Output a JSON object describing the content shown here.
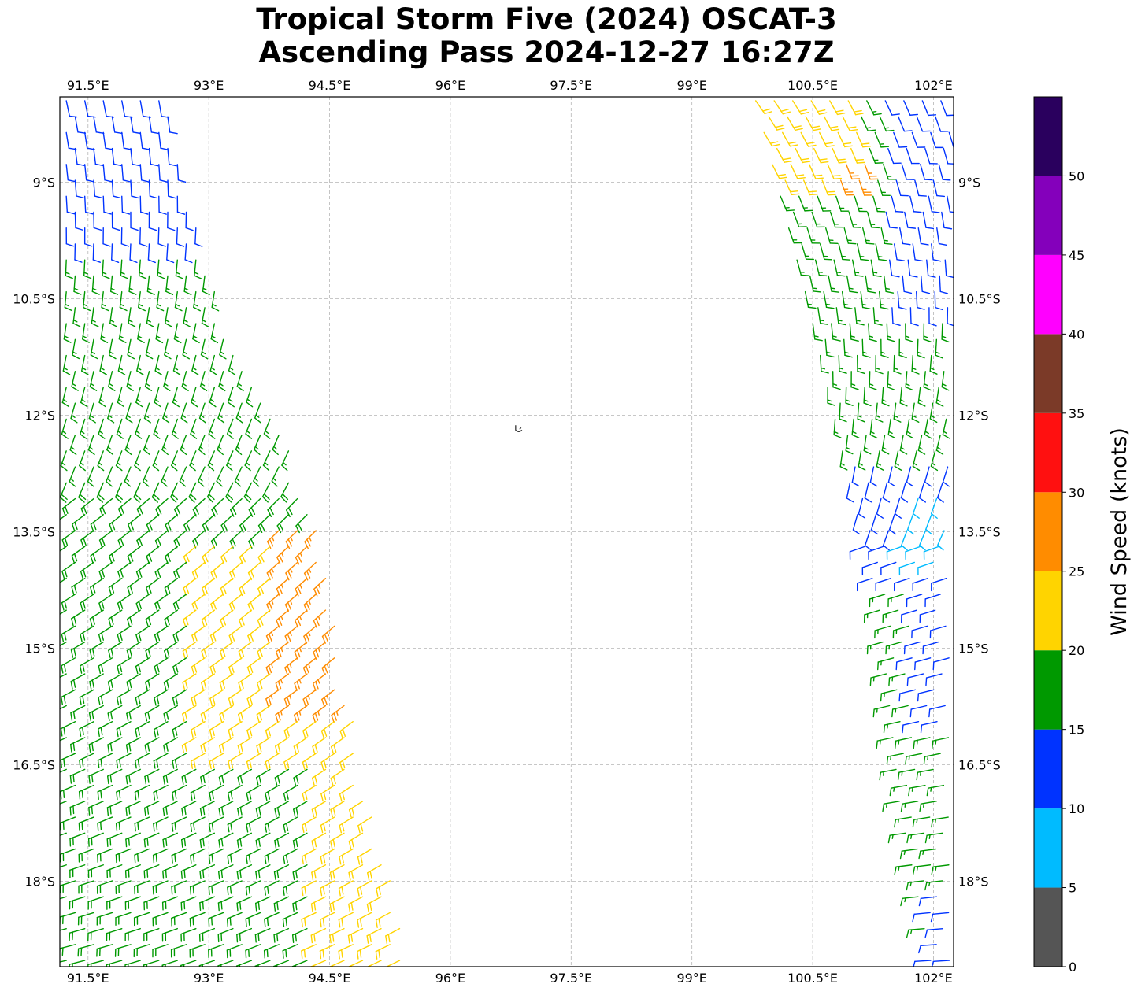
{
  "title": {
    "line1": "Tropical Storm Five (2024) OSCAT-3",
    "line2": "Ascending Pass 2024-12-27 16:27Z"
  },
  "map": {
    "lon_range": [
      91.15,
      102.25
    ],
    "lat_range": [
      -19.1,
      -7.9
    ],
    "lon_ticks": [
      91.5,
      93,
      94.5,
      96,
      97.5,
      99,
      100.5,
      102
    ],
    "lon_tick_labels": [
      "91.5°E",
      "93°E",
      "94.5°E",
      "96°E",
      "97.5°E",
      "99°E",
      "100.5°E",
      "102°E"
    ],
    "lat_ticks": [
      -9,
      -10.5,
      -12,
      -13.5,
      -15,
      -16.5,
      -18
    ],
    "lat_tick_labels": [
      "9°S",
      "10.5°S",
      "12°S",
      "13.5°S",
      "15°S",
      "16.5°S",
      "18°S"
    ],
    "gridlines": true,
    "island": {
      "lon": 96.85,
      "lat": -12.17
    }
  },
  "colorbar": {
    "label": "Wind Speed (knots)",
    "levels": [
      0,
      5,
      10,
      15,
      20,
      25,
      30,
      35,
      40,
      45,
      50
    ],
    "tick_labels": [
      "0",
      "5",
      "10",
      "15",
      "20",
      "25",
      "30",
      "35",
      "40",
      "45",
      "50"
    ],
    "max": 55,
    "colors": [
      "#555555",
      "#00bbff",
      "#0033ff",
      "#009900",
      "#ffd400",
      "#ff8c00",
      "#ff1010",
      "#7b3a28",
      "#ff00ff",
      "#8400bb",
      "#2a005e"
    ]
  },
  "colors": {
    "calm": "#555555",
    "light": "#00bbff",
    "moderate": "#0033ff",
    "fresh": "#009900",
    "strong": "#ffd400",
    "gale": "#ff8c00"
  },
  "swaths": [
    {
      "name": "west-swath",
      "edge_west": [
        [
          91.15,
          -7.9
        ],
        [
          91.15,
          -19.1
        ]
      ],
      "edge_east": [
        [
          92.5,
          -8.0
        ],
        [
          93.25,
          -10.8
        ],
        [
          94.3,
          -13.0
        ],
        [
          95.0,
          -16.8
        ],
        [
          95.6,
          -19.1
        ]
      ],
      "speed_zones": [
        {
          "lat_max": -7.9,
          "lat_min": -10.0,
          "speed": 12
        },
        {
          "lat_max": -10.0,
          "lat_min": -12.8,
          "speed": 17
        },
        {
          "lat_max": -12.8,
          "lat_min": -19.1,
          "speed": 18
        },
        {
          "lat_max": -13.5,
          "lat_min": -16.5,
          "lon_min": 92.8,
          "speed": 22
        },
        {
          "lat_max": -13.3,
          "lat_min": -15.8,
          "lon_min": 93.8,
          "speed": 26
        },
        {
          "lat_max": -16.5,
          "lat_min": -19.1,
          "lon_min": 94.3,
          "speed": 22
        }
      ]
    },
    {
      "name": "east-swath",
      "edge_west": [
        [
          99.7,
          -7.9
        ],
        [
          100.35,
          -10.5
        ],
        [
          100.8,
          -12.5
        ],
        [
          101.25,
          -14.5
        ],
        [
          101.5,
          -17.0
        ],
        [
          101.9,
          -19.1
        ]
      ],
      "edge_east": [
        [
          102.25,
          -7.9
        ],
        [
          102.25,
          -19.1
        ]
      ],
      "speed_zones": [
        {
          "lat_max": -7.9,
          "lat_min": -11.2,
          "lon_max": 101.1,
          "speed": 22
        },
        {
          "lat_max": -8.6,
          "lat_min": -9.2,
          "lon_min": 100.8,
          "lon_max": 101.3,
          "speed": 26
        },
        {
          "lat_max": -9.0,
          "lat_min": -12.5,
          "speed": 17
        },
        {
          "lat_max": -7.9,
          "lat_min": -10.8,
          "lon_min": 101.4,
          "speed": 12
        },
        {
          "lat_max": -12.5,
          "lat_min": -14.3,
          "speed": 12
        },
        {
          "lat_max": -13.0,
          "lat_min": -14.0,
          "lon_min": 101.6,
          "speed": 8
        },
        {
          "lat_max": -14.3,
          "lat_min": -19.1,
          "speed": 17
        },
        {
          "lat_max": -14.3,
          "lat_min": -16.0,
          "lon_min": 101.7,
          "speed": 12
        },
        {
          "lat_max": -18.0,
          "lat_min": -19.1,
          "lon_min": 101.9,
          "speed": 11
        }
      ]
    }
  ]
}
